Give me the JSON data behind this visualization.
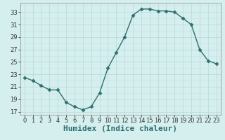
{
  "x": [
    0,
    1,
    2,
    3,
    4,
    5,
    6,
    7,
    8,
    9,
    10,
    11,
    12,
    13,
    14,
    15,
    16,
    17,
    18,
    19,
    20,
    21,
    22,
    23
  ],
  "y": [
    22.5,
    22.0,
    21.2,
    20.5,
    20.5,
    18.5,
    17.8,
    17.3,
    17.8,
    20.0,
    24.0,
    26.5,
    29.0,
    32.5,
    33.5,
    33.5,
    33.2,
    33.2,
    33.0,
    32.0,
    31.0,
    27.0,
    25.2,
    24.7
  ],
  "line_color": "#2e7070",
  "marker": "D",
  "markersize": 2.5,
  "linewidth": 1.0,
  "bg_color": "#d5eeee",
  "grid_color_major": "#b8d8d8",
  "grid_color_minor": "#c8e4e4",
  "xlabel": "Humidex (Indice chaleur)",
  "xlabel_fontsize": 8,
  "tick_fontsize": 6,
  "yticks": [
    17,
    19,
    21,
    23,
    25,
    27,
    29,
    31,
    33
  ],
  "xtick_labels": [
    "0",
    "1",
    "2",
    "3",
    "4",
    "5",
    "6",
    "7",
    "8",
    "9",
    "10",
    "11",
    "12",
    "13",
    "14",
    "15",
    "16",
    "17",
    "18",
    "19",
    "20",
    "21",
    "22",
    "23"
  ],
  "ylim": [
    16.5,
    34.5
  ],
  "xlim": [
    -0.5,
    23.5
  ]
}
